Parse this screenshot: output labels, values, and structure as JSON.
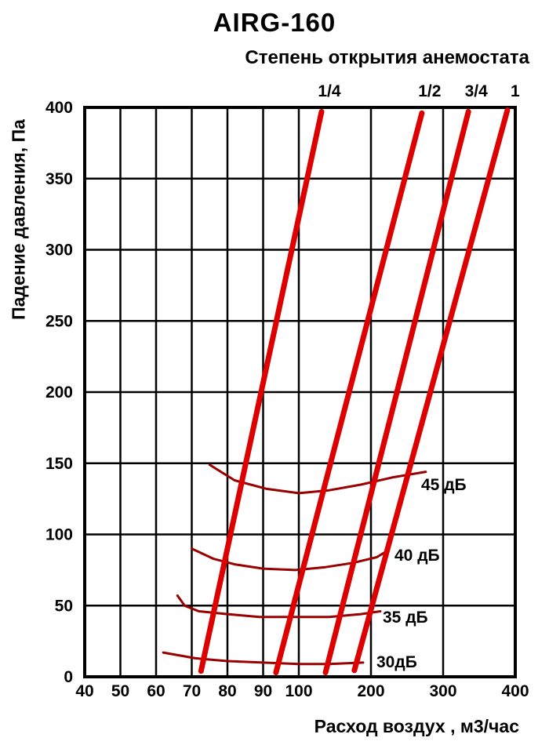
{
  "page": {
    "background": "#ffffff"
  },
  "chart_data": {
    "type": "line",
    "title": "AIRG-160",
    "subtitle": "Степень открытия анемостата",
    "xlabel": "Расход воздух , м3/час",
    "ylabel": "Падение давления, Па",
    "xlim": [
      40,
      400
    ],
    "ylim": [
      0,
      400
    ],
    "x_scale_note": "piecewise linear: equal steps 40-100 by 10, then equal steps 100-400 by 100",
    "grid": true,
    "x_ticks": [
      40,
      50,
      60,
      70,
      80,
      90,
      100,
      200,
      300,
      400
    ],
    "x_tick_labels": [
      "40",
      "50",
      "60",
      "70",
      "80",
      "90",
      "100",
      "200",
      "300",
      "400"
    ],
    "y_ticks": [
      0,
      50,
      100,
      150,
      200,
      250,
      300,
      350,
      400
    ],
    "y_tick_labels": [
      "0",
      "50",
      "100",
      "150",
      "200",
      "250",
      "300",
      "350",
      "400"
    ],
    "colors": {
      "opening_line": "#dd0000",
      "noise_curve": "#990000",
      "grid": "#000000",
      "text": "#000000"
    },
    "opening_lines": [
      {
        "label": "1/4",
        "points": [
          [
            72.6,
            4
          ],
          [
            131.5,
            397
          ]
        ]
      },
      {
        "label": "1/2",
        "points": [
          [
            93.6,
            3
          ],
          [
            270.5,
            396
          ]
        ]
      },
      {
        "label": "3/4",
        "points": [
          [
            137,
            3
          ],
          [
            335,
            397
          ]
        ]
      },
      {
        "label": "1",
        "points": [
          [
            177,
            4.5
          ],
          [
            389,
            398
          ]
        ]
      }
    ],
    "noise_curves": [
      {
        "label": "30дБ",
        "points": [
          [
            62,
            17
          ],
          [
            71,
            13
          ],
          [
            80,
            11
          ],
          [
            90,
            10
          ],
          [
            100,
            9
          ],
          [
            142,
            9
          ],
          [
            189,
            10
          ]
        ]
      },
      {
        "label": "35 дБ",
        "points": [
          [
            66,
            57
          ],
          [
            68,
            50
          ],
          [
            72,
            46
          ],
          [
            80,
            44
          ],
          [
            89,
            42
          ],
          [
            99,
            42
          ],
          [
            142,
            42
          ],
          [
            186,
            44
          ],
          [
            213,
            46
          ]
        ]
      },
      {
        "label": "40 дБ",
        "points": [
          [
            70,
            90
          ],
          [
            76,
            83
          ],
          [
            82,
            79
          ],
          [
            90,
            76
          ],
          [
            99,
            75
          ],
          [
            137,
            77
          ],
          [
            175,
            80
          ],
          [
            208,
            84
          ],
          [
            221,
            88
          ]
        ]
      },
      {
        "label": "45 дБ",
        "points": [
          [
            75,
            149
          ],
          [
            82,
            138
          ],
          [
            91,
            132
          ],
          [
            100,
            129
          ],
          [
            142,
            131
          ],
          [
            186,
            135
          ],
          [
            229,
            140
          ],
          [
            276,
            144
          ]
        ]
      }
    ]
  }
}
